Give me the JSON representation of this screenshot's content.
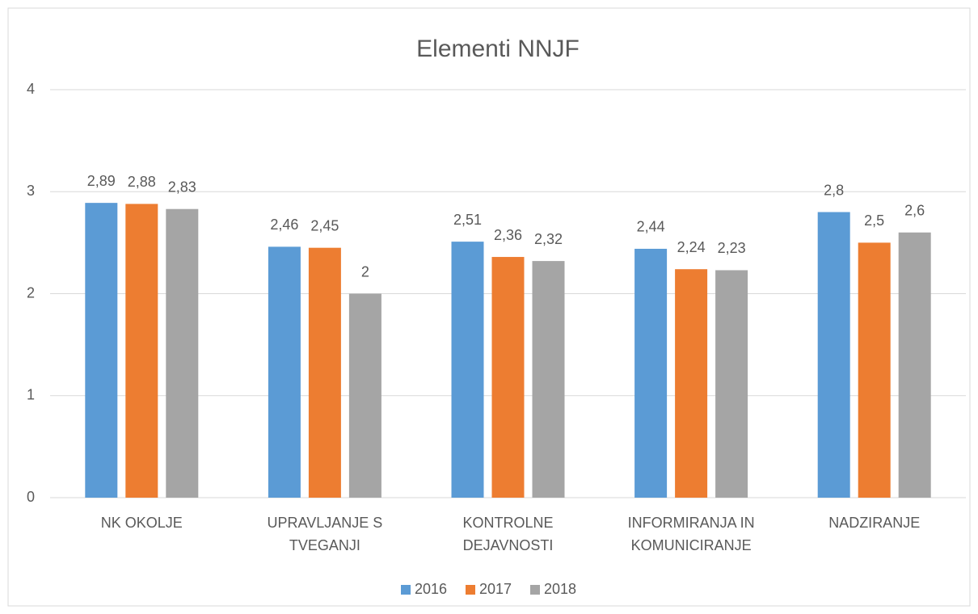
{
  "chart_data": {
    "type": "bar",
    "title": "Elementi NNJF",
    "categories": [
      "NK OKOLJE",
      "UPRAVLJANJE S TVEGANJI",
      "KONTROLNE DEJAVNOSTI",
      "INFORMIRANJA IN KOMUNICIRANJE",
      "NADZIRANJE"
    ],
    "series": [
      {
        "name": "2016",
        "color": "#5b9bd5",
        "values": [
          2.89,
          2.46,
          2.51,
          2.44,
          2.8
        ],
        "value_labels": [
          "2,89",
          "2,46",
          "2,51",
          "2,44",
          "2,8"
        ]
      },
      {
        "name": "2017",
        "color": "#ed7d31",
        "values": [
          2.88,
          2.45,
          2.36,
          2.24,
          2.5
        ],
        "value_labels": [
          "2,88",
          "2,45",
          "2,36",
          "2,24",
          "2,5"
        ]
      },
      {
        "name": "2018",
        "color": "#a5a5a5",
        "values": [
          2.83,
          2,
          2.32,
          2.23,
          2.6
        ],
        "value_labels": [
          "2,83",
          "2",
          "2,32",
          "2,23",
          "2,6"
        ]
      }
    ],
    "ylim": [
      0,
      4
    ],
    "yticks": [
      0,
      1,
      2,
      3,
      4
    ],
    "grid": true,
    "legend": "bottom"
  }
}
